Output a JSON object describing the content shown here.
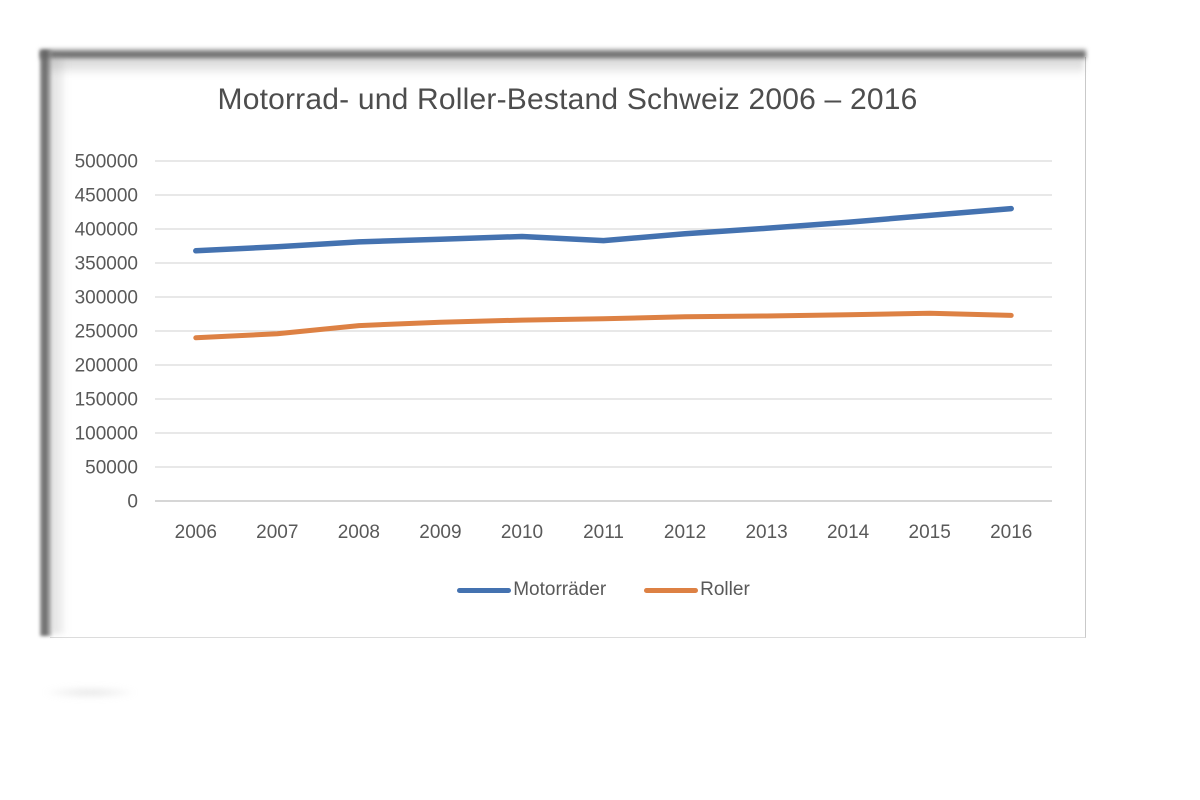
{
  "page": {
    "background": "#ffffff"
  },
  "chart_data": {
    "type": "line",
    "title": "Motorrad- und Roller-Bestand Schweiz 2006 – 2016",
    "categories": [
      "2006",
      "2007",
      "2008",
      "2009",
      "2010",
      "2011",
      "2012",
      "2013",
      "2014",
      "2015",
      "2016"
    ],
    "series": [
      {
        "name": "Motorräder",
        "color": "#4472b0",
        "values": [
          368000,
          374000,
          381000,
          385000,
          389000,
          383000,
          393000,
          401000,
          410000,
          420000,
          430000
        ]
      },
      {
        "name": "Roller",
        "color": "#dd8144",
        "values": [
          240000,
          246000,
          258000,
          263000,
          266000,
          268000,
          271000,
          272000,
          274000,
          276000,
          273000
        ]
      }
    ],
    "xlabel": "",
    "ylabel": "",
    "ylim": [
      0,
      500000
    ],
    "yticks": [
      0,
      50000,
      100000,
      150000,
      200000,
      250000,
      300000,
      350000,
      400000,
      450000,
      500000
    ],
    "grid": true,
    "legend_position": "bottom",
    "colors": {
      "title_text": "#4d4d4d",
      "axis_text": "#595959",
      "gridline": "#d9d9d9",
      "baseline": "#bdbdbd"
    }
  }
}
